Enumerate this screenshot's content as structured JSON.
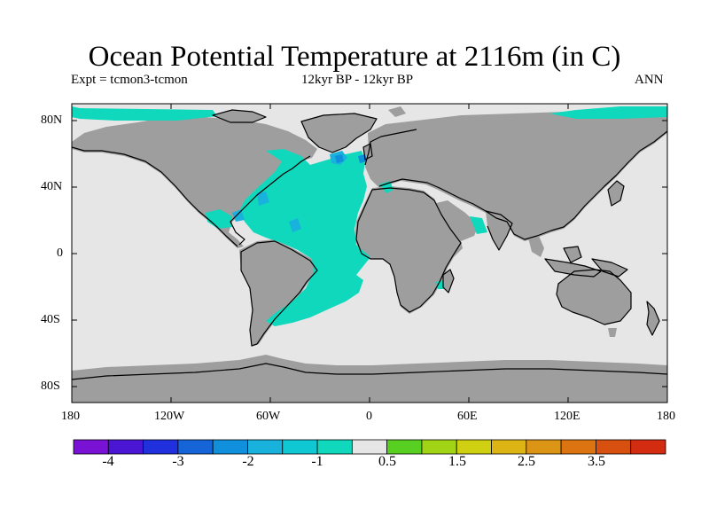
{
  "title": "Ocean Potential Temperature at 2116m (in C)",
  "experiment": "Expt = tcmon3-tcmon",
  "period": "12kyr BP - 12kyr BP",
  "season": "ANN",
  "lat_ticks": [
    "80N",
    "40N",
    "0",
    "40S",
    "80S"
  ],
  "lon_ticks": [
    "180",
    "120W",
    "60W",
    "0",
    "60E",
    "120E",
    "180"
  ],
  "colorbar": {
    "colors": [
      "#7a12d6",
      "#4a16d4",
      "#2030dc",
      "#1565d8",
      "#1090dc",
      "#18b2dc",
      "#10c8d4",
      "#10d8bc",
      "#e6e6e6",
      "#58d022",
      "#a2d416",
      "#d0d012",
      "#dcb414",
      "#dc9414",
      "#dc7412",
      "#d85010",
      "#d42c10"
    ],
    "labels": [
      "-4",
      "-3",
      "-2",
      "-1",
      "0.5",
      "1.5",
      "2.5",
      "3.5"
    ]
  },
  "map_colors": {
    "land": "#9e9e9e",
    "ocean_neutral": "#e6e6e6",
    "cooling": "#10d8bc",
    "cooling_strong": "#18b2dc",
    "cooling_strongest": "#1090dc",
    "coastline": "#000000"
  }
}
